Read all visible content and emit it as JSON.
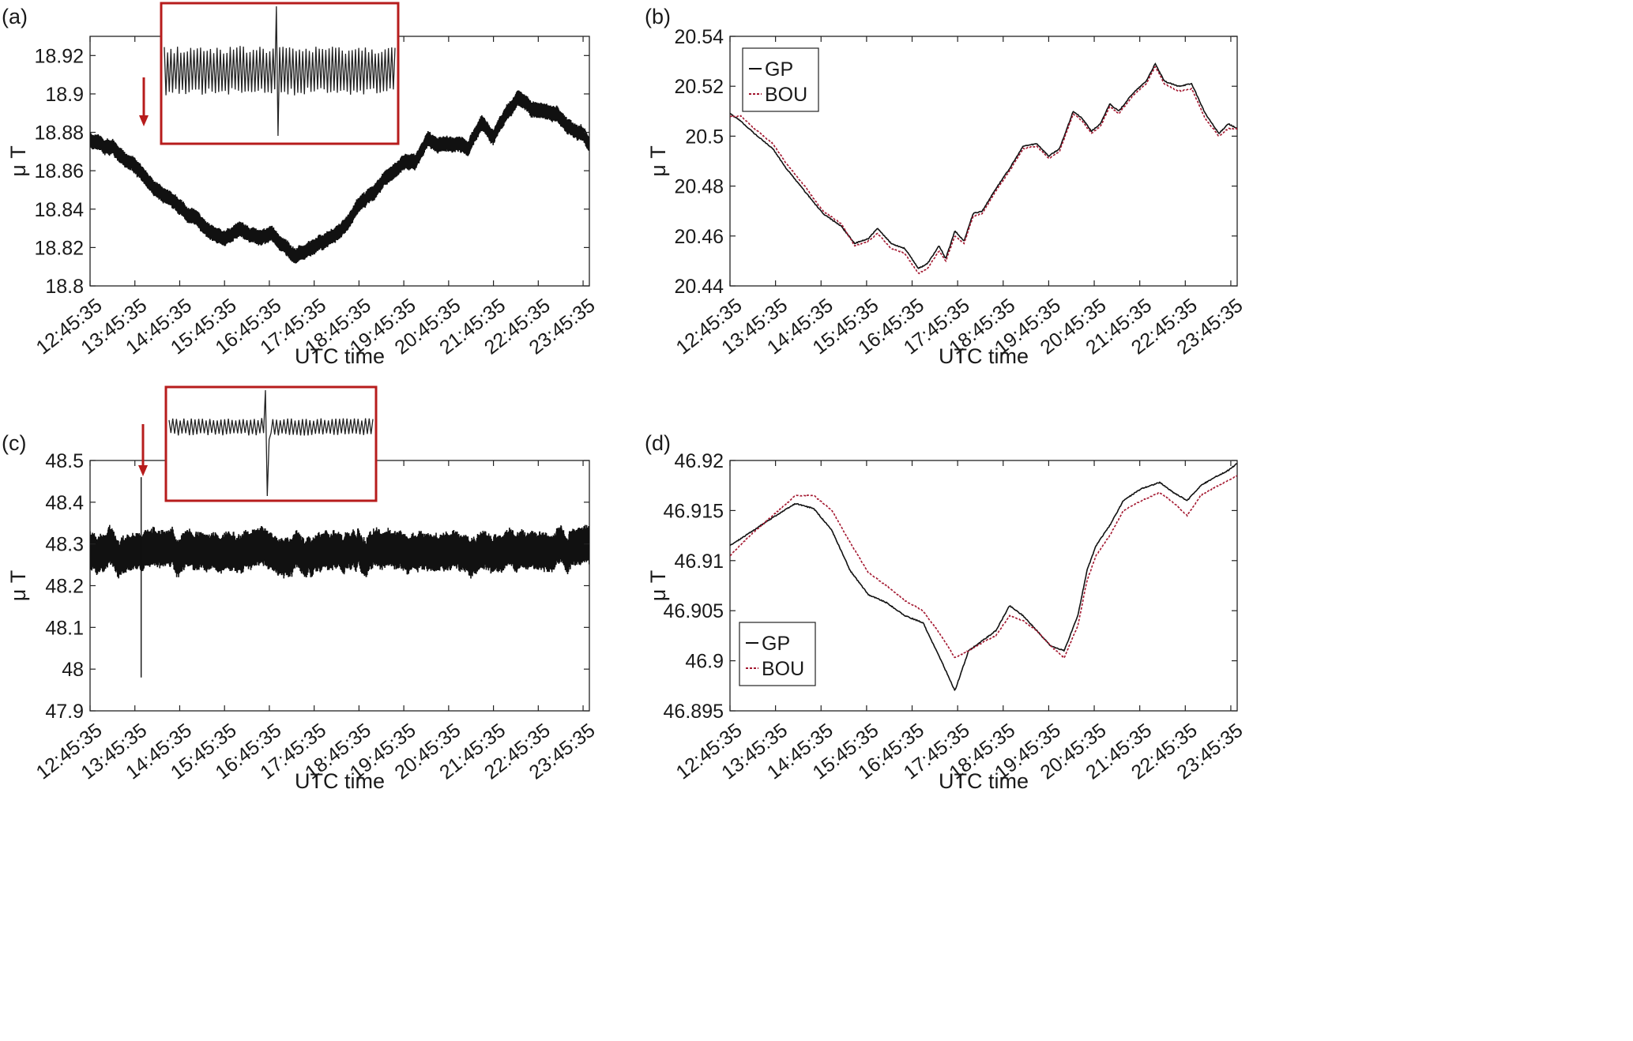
{
  "colors": {
    "gp": "#111111",
    "bou": "#a3172f",
    "inset_frame": "#b71c1c",
    "arrow": "#b71c1c"
  },
  "chart_data": [
    {
      "id": "a",
      "panel_label": "(a)",
      "type": "line",
      "xlabel": "UTC time",
      "ylabel": "μ T",
      "x_ticks": [
        "12:45:35",
        "13:45:35",
        "14:45:35",
        "15:45:35",
        "16:45:35",
        "17:45:35",
        "18:45:35",
        "19:45:35",
        "20:45:35",
        "21:45:35",
        "22:45:35",
        "23:45:35"
      ],
      "x_range_hours": [
        12.76,
        23.9
      ],
      "y_ticks": [
        "18.8",
        "18.82",
        "18.84",
        "18.86",
        "18.88",
        "18.9",
        "18.92"
      ],
      "ylim": [
        18.8,
        18.93
      ],
      "band_width": 0.008,
      "series": [
        {
          "x": [
            12.76,
            13.3,
            13.76,
            14.2,
            14.76,
            15.3,
            15.76,
            16.1,
            16.5,
            16.8,
            17.0,
            17.3,
            17.76,
            18.2,
            18.5,
            18.76,
            19.2,
            19.5,
            19.76,
            20.0,
            20.3,
            20.6,
            20.9,
            21.2,
            21.5,
            21.76,
            22.0,
            22.3,
            22.6,
            22.9,
            23.2,
            23.5,
            23.76,
            23.9
          ],
          "y": [
            18.876,
            18.871,
            18.862,
            18.851,
            18.841,
            18.831,
            18.825,
            18.829,
            18.824,
            18.828,
            18.822,
            18.816,
            18.821,
            18.826,
            18.832,
            18.841,
            18.851,
            18.859,
            18.865,
            18.864,
            18.876,
            18.872,
            18.874,
            18.872,
            18.885,
            18.878,
            18.888,
            18.898,
            18.893,
            18.89,
            18.888,
            18.88,
            18.88,
            18.873
          ]
        }
      ],
      "inset": {
        "frame": true
      }
    },
    {
      "id": "b",
      "panel_label": "(b)",
      "type": "line",
      "xlabel": "UTC time",
      "ylabel": "μ T",
      "x_ticks": [
        "12:45:35",
        "13:45:35",
        "14:45:35",
        "15:45:35",
        "16:45:35",
        "17:45:35",
        "18:45:35",
        "19:45:35",
        "20:45:35",
        "21:45:35",
        "22:45:35",
        "23:45:35"
      ],
      "x_range_hours": [
        12.76,
        23.9
      ],
      "y_ticks": [
        "20.44",
        "20.46",
        "20.48",
        "20.5",
        "20.52",
        "20.54"
      ],
      "ylim": [
        20.44,
        20.54
      ],
      "legend": {
        "position": "top-left",
        "entries": [
          "GP",
          "BOU"
        ]
      },
      "series": [
        {
          "name": "GP",
          "style": "solid",
          "x": [
            12.76,
            13.0,
            13.3,
            13.7,
            14.0,
            14.4,
            14.8,
            15.2,
            15.5,
            15.8,
            16.0,
            16.3,
            16.6,
            16.9,
            17.1,
            17.35,
            17.5,
            17.7,
            17.9,
            18.1,
            18.3,
            18.6,
            18.9,
            19.2,
            19.5,
            19.76,
            20.0,
            20.3,
            20.5,
            20.7,
            20.9,
            21.1,
            21.3,
            21.6,
            21.9,
            22.1,
            22.3,
            22.6,
            22.9,
            23.2,
            23.5,
            23.7,
            23.9
          ],
          "y": [
            20.509,
            20.506,
            20.501,
            20.495,
            20.487,
            20.478,
            20.469,
            20.464,
            20.457,
            20.459,
            20.463,
            20.457,
            20.455,
            20.447,
            20.449,
            20.456,
            20.451,
            20.462,
            20.458,
            20.469,
            20.47,
            20.479,
            20.487,
            20.496,
            20.497,
            20.492,
            20.495,
            20.51,
            20.507,
            20.502,
            20.505,
            20.513,
            20.51,
            20.517,
            20.522,
            20.529,
            20.522,
            20.52,
            20.521,
            20.509,
            20.501,
            20.505,
            20.503
          ]
        },
        {
          "name": "BOU",
          "style": "dashed",
          "x": [
            12.76,
            13.0,
            13.3,
            13.7,
            14.0,
            14.4,
            14.8,
            15.2,
            15.5,
            15.8,
            16.0,
            16.3,
            16.6,
            16.9,
            17.1,
            17.35,
            17.5,
            17.7,
            17.9,
            18.1,
            18.3,
            18.6,
            18.9,
            19.2,
            19.5,
            19.76,
            20.0,
            20.3,
            20.5,
            20.7,
            20.9,
            21.1,
            21.3,
            21.6,
            21.9,
            22.1,
            22.3,
            22.6,
            22.9,
            23.2,
            23.5,
            23.7,
            23.9
          ],
          "y": [
            20.508,
            20.508,
            20.503,
            20.497,
            20.489,
            20.48,
            20.47,
            20.465,
            20.456,
            20.458,
            20.461,
            20.455,
            20.453,
            20.445,
            20.447,
            20.454,
            20.45,
            20.46,
            20.457,
            20.468,
            20.469,
            20.478,
            20.486,
            20.495,
            20.496,
            20.491,
            20.494,
            20.509,
            20.506,
            20.501,
            20.504,
            20.512,
            20.509,
            20.516,
            20.521,
            20.528,
            20.521,
            20.518,
            20.519,
            20.507,
            20.5,
            20.503,
            20.503
          ]
        }
      ]
    },
    {
      "id": "c",
      "panel_label": "(c)",
      "type": "line",
      "xlabel": "UTC time",
      "ylabel": "μ T",
      "x_ticks": [
        "12:45:35",
        "13:45:35",
        "14:45:35",
        "15:45:35",
        "16:45:35",
        "17:45:35",
        "18:45:35",
        "19:45:35",
        "20:45:35",
        "21:45:35",
        "22:45:35",
        "23:45:35"
      ],
      "x_range_hours": [
        12.76,
        23.9
      ],
      "y_ticks": [
        "47.9",
        "48",
        "48.1",
        "48.2",
        "48.3",
        "48.4",
        "48.5"
      ],
      "ylim": [
        47.9,
        48.5
      ],
      "band_width": 0.09,
      "spike": {
        "x": 13.9,
        "y_high": 48.46,
        "y_low": 47.98
      },
      "series": [
        {
          "x": [
            12.76,
            13.5,
            14.3,
            15.0,
            15.8,
            16.5,
            17.3,
            18.0,
            18.8,
            19.5,
            20.3,
            21.0,
            21.8,
            22.5,
            23.2,
            23.9
          ],
          "y": [
            48.285,
            48.287,
            48.288,
            48.285,
            48.282,
            48.28,
            48.279,
            48.28,
            48.279,
            48.281,
            48.28,
            48.283,
            48.284,
            48.287,
            48.289,
            48.29
          ]
        }
      ],
      "inset": {
        "frame": true
      }
    },
    {
      "id": "d",
      "panel_label": "(d)",
      "type": "line",
      "xlabel": "UTC time",
      "ylabel": "μ T",
      "x_ticks": [
        "12:45:35",
        "13:45:35",
        "14:45:35",
        "15:45:35",
        "16:45:35",
        "17:45:35",
        "18:45:35",
        "19:45:35",
        "20:45:35",
        "21:45:35",
        "22:45:35",
        "23:45:35"
      ],
      "x_range_hours": [
        12.76,
        23.9
      ],
      "y_ticks": [
        "46.895",
        "46.9",
        "46.905",
        "46.91",
        "46.915",
        "46.92"
      ],
      "ylim": [
        46.895,
        46.92
      ],
      "legend": {
        "position": "bottom-left",
        "entries": [
          "GP",
          "BOU"
        ]
      },
      "series": [
        {
          "name": "GP",
          "style": "solid",
          "x": [
            12.76,
            13.2,
            13.7,
            14.2,
            14.6,
            15.0,
            15.4,
            15.8,
            16.2,
            16.6,
            17.0,
            17.4,
            17.7,
            18.0,
            18.3,
            18.6,
            18.9,
            19.2,
            19.5,
            19.8,
            20.1,
            20.4,
            20.6,
            20.8,
            21.1,
            21.4,
            21.8,
            22.2,
            22.5,
            22.8,
            23.1,
            23.4,
            23.7,
            23.9
          ],
          "y": [
            46.9115,
            46.9128,
            46.9143,
            46.9157,
            46.9152,
            46.913,
            46.909,
            46.9066,
            46.9058,
            46.9045,
            46.9038,
            46.9,
            46.897,
            46.901,
            46.902,
            46.903,
            46.9055,
            46.9045,
            46.903,
            46.9015,
            46.901,
            46.9045,
            46.909,
            46.9115,
            46.9135,
            46.916,
            46.9172,
            46.9178,
            46.9168,
            46.916,
            46.9175,
            46.9183,
            46.919,
            46.9197
          ]
        },
        {
          "name": "BOU",
          "style": "dashed",
          "x": [
            12.76,
            13.2,
            13.7,
            14.2,
            14.6,
            15.0,
            15.4,
            15.8,
            16.2,
            16.6,
            17.0,
            17.4,
            17.7,
            18.0,
            18.3,
            18.6,
            18.9,
            19.2,
            19.5,
            19.8,
            20.1,
            20.4,
            20.6,
            20.8,
            21.1,
            21.4,
            21.8,
            22.2,
            22.5,
            22.8,
            23.1,
            23.4,
            23.7,
            23.9
          ],
          "y": [
            46.9105,
            46.9125,
            46.9145,
            46.9165,
            46.9165,
            46.915,
            46.9118,
            46.9088,
            46.9075,
            46.906,
            46.905,
            46.9025,
            46.9003,
            46.901,
            46.9018,
            46.9025,
            46.9045,
            46.904,
            46.903,
            46.9015,
            46.9003,
            46.9035,
            46.908,
            46.9105,
            46.9125,
            46.915,
            46.916,
            46.9168,
            46.9158,
            46.9145,
            46.9165,
            46.9173,
            46.918,
            46.9185
          ]
        }
      ]
    }
  ]
}
